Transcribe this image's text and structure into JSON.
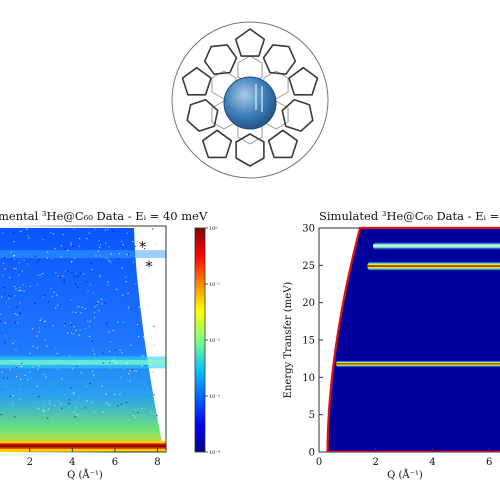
{
  "chart_data": [
    {
      "type": "heatmap",
      "title": "mental ³He@C₆₀ Data - Eᵢ = 40 meV",
      "xlabel": "Q (Å⁻¹)",
      "ylabel": "",
      "xlim": [
        0.6,
        8.4
      ],
      "ylim": [
        0,
        30
      ],
      "x_ticks": [
        "2",
        "4",
        "6",
        "8"
      ],
      "colorbar": {
        "scale": "log",
        "range": [
          0.0001,
          1
        ],
        "tick_labels": [
          "10⁰",
          "10⁻¹",
          "10⁻²",
          "10⁻³",
          "10⁻⁴"
        ],
        "colors": [
          "#00007f",
          "#0000ff",
          "#00bfff",
          "#7fff7f",
          "#ffff00",
          "#ff7f00",
          "#ff0000",
          "#7f0000"
        ]
      },
      "bands": [
        {
          "y": 0.8,
          "level": "high"
        },
        {
          "y": 12.0,
          "level": "medium"
        },
        {
          "y": 26.5,
          "level": "low"
        }
      ],
      "annotations": [
        {
          "text": "*",
          "q": 7.3,
          "y": 27.6
        },
        {
          "text": "*",
          "q": 7.6,
          "y": 25.0
        }
      ]
    },
    {
      "type": "heatmap",
      "title": "Simulated ³He@C₆₀ Data - Eᵢ = 40 m",
      "xlabel": "Q (Å⁻¹)",
      "ylabel": "Energy Transfer (meV)",
      "xlim": [
        0,
        7.3
      ],
      "ylim": [
        0,
        30
      ],
      "x_ticks": [
        "0",
        "2",
        "4",
        "6"
      ],
      "y_ticks": [
        "0",
        "5",
        "10",
        "15",
        "20",
        "25",
        "30"
      ],
      "bands": [
        {
          "y": 11.8,
          "q_range": [
            0.6,
            7.3
          ]
        },
        {
          "y": 24.9,
          "q_range": [
            1.7,
            7.3
          ]
        },
        {
          "y": 27.6,
          "q_range": [
            1.9,
            7.3
          ]
        }
      ]
    }
  ]
}
